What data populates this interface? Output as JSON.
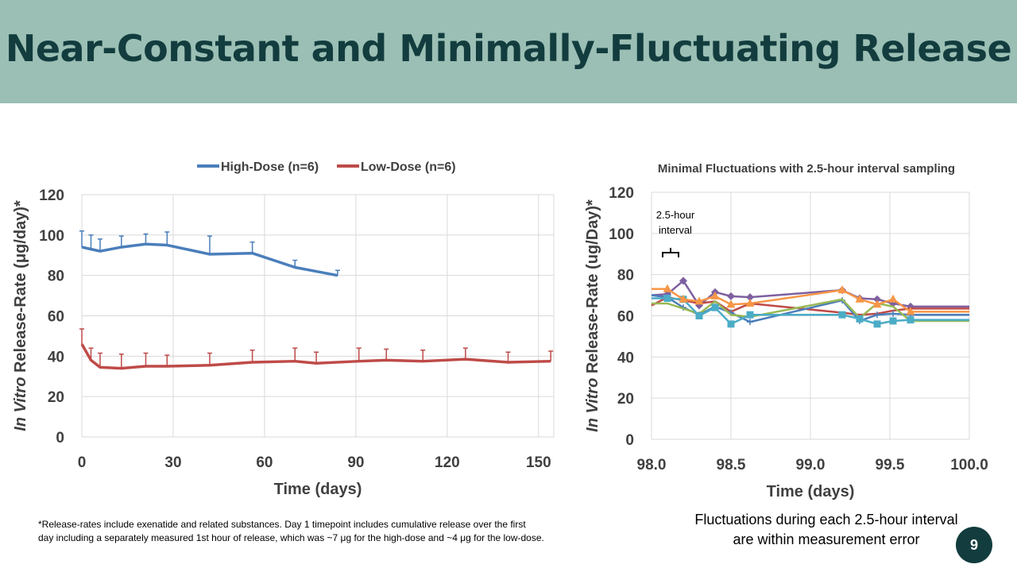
{
  "slide": {
    "title": "Near-Constant and Minimally-Fluctuating Release",
    "page_number": "9",
    "footnote_line1": "*Release-rates include exenatide and related substances.   Day 1 timepoint includes cumulative release over the first",
    "footnote_line2": "day including  a separately measured 1st hour of release, which was ~7 μg for the high-dose and ~4 μg for the low-dose.",
    "fluctuation_note_line1": "Fluctuations during each 2.5-hour interval",
    "fluctuation_note_line2": "are within measurement error",
    "colors": {
      "banner": "#9bbfb4",
      "title": "#123c3e",
      "high_dose": "#4a7ebb",
      "low_dose": "#be4b48"
    }
  },
  "chart_data": [
    {
      "type": "line",
      "title": "",
      "xlabel": "Time (days)",
      "ylabel_italic": "In Vitro",
      "ylabel_rest": " Release-Rate (μg/day)*",
      "xlim": [
        0,
        155
      ],
      "ylim": [
        0,
        120
      ],
      "xticks": [
        0,
        30,
        60,
        90,
        120,
        150
      ],
      "yticks": [
        0,
        20,
        40,
        60,
        80,
        100,
        120
      ],
      "grid": true,
      "legend_position": "top",
      "series": [
        {
          "name": "High-Dose (n=6)",
          "color": "#4a7ebb",
          "x": [
            0,
            3,
            6,
            13,
            21,
            28,
            42,
            56,
            70,
            84
          ],
          "y": [
            94,
            93,
            92,
            94,
            95.5,
            95,
            90.5,
            91,
            84,
            80
          ],
          "err": [
            8,
            7,
            6,
            5.5,
            5,
            6.5,
            9,
            5.5,
            3.5,
            2.5
          ]
        },
        {
          "name": "Low-Dose (n=6)",
          "color": "#be4b48",
          "x": [
            0,
            3,
            6,
            13,
            21,
            28,
            42,
            56,
            70,
            77,
            91,
            100,
            112,
            126,
            140,
            154
          ],
          "y": [
            46,
            38,
            34.5,
            34,
            35,
            35,
            35.5,
            37,
            37.5,
            36.5,
            37.5,
            38,
            37.5,
            38.5,
            37,
            37.5
          ],
          "err": [
            7.5,
            6,
            7,
            7,
            6.5,
            5.5,
            6,
            6,
            6.5,
            5.5,
            6.5,
            5.5,
            5.5,
            5.5,
            5,
            5
          ]
        }
      ]
    },
    {
      "type": "line",
      "title": "Minimal Fluctuations with 2.5-hour interval sampling",
      "xlabel": "Time (days)",
      "ylabel_italic": "In Vitro",
      "ylabel_rest": " Release-Rate (ug/Day)*",
      "xlim": [
        98.0,
        100.0
      ],
      "ylim": [
        0,
        120
      ],
      "xticks": [
        "98.0",
        "98.5",
        "99.0",
        "99.5",
        "100.0"
      ],
      "yticks": [
        0,
        20,
        40,
        60,
        80,
        100,
        120
      ],
      "grid": true,
      "annotation_line1": "2.5-hour",
      "annotation_line2": "interval",
      "series": [
        {
          "color": "#7e60a0",
          "marker": "diamond",
          "x": [
            98.0,
            98.1,
            98.2,
            98.3,
            98.4,
            98.5,
            98.62,
            99.2,
            99.31,
            99.42,
            99.52,
            99.63,
            100.0
          ],
          "y": [
            70,
            70.5,
            77,
            65,
            71.5,
            69.5,
            69,
            72.5,
            68.5,
            68,
            66,
            64.5,
            64.5
          ]
        },
        {
          "color": "#be4b48",
          "marker": "none",
          "x": [
            98.0,
            98.1,
            98.2,
            98.3,
            98.4,
            98.5,
            98.62,
            99.2,
            99.31,
            99.42,
            99.52,
            99.63,
            100.0
          ],
          "y": [
            65,
            69,
            67.5,
            66,
            67,
            62,
            66,
            61.5,
            60.5,
            61,
            62.5,
            63.5,
            63.5
          ]
        },
        {
          "color": "#4a7ebb",
          "marker": "plus",
          "x": [
            98.0,
            98.1,
            98.2,
            98.3,
            98.4,
            98.5,
            98.62,
            99.2,
            99.31,
            99.42,
            99.52,
            99.63,
            100.0
          ],
          "y": [
            70,
            69,
            64,
            60.5,
            64.5,
            61.5,
            57,
            67.5,
            57.5,
            60.5,
            61,
            60.5,
            60.5
          ]
        },
        {
          "color": "#98b954",
          "marker": "none",
          "x": [
            98.0,
            98.1,
            98.2,
            98.3,
            98.4,
            98.5,
            98.62,
            99.2,
            99.31,
            99.42,
            99.52,
            99.63,
            100.0
          ],
          "y": [
            66,
            66,
            63.5,
            61,
            67,
            60.5,
            59.5,
            68,
            59,
            66,
            64.5,
            57.5,
            57.5
          ]
        },
        {
          "color": "#4bacc6",
          "marker": "square",
          "x": [
            98.0,
            98.1,
            98.2,
            98.3,
            98.4,
            98.5,
            98.62,
            99.2,
            99.31,
            99.42,
            99.52,
            99.63,
            100.0
          ],
          "y": [
            68.5,
            68.5,
            68,
            60,
            64,
            56,
            60.5,
            60.5,
            58.5,
            56,
            57.5,
            58,
            58
          ]
        },
        {
          "color": "#f79646",
          "marker": "triangle",
          "x": [
            98.0,
            98.1,
            98.2,
            98.3,
            98.4,
            98.5,
            98.62,
            99.2,
            99.31,
            99.42,
            99.52,
            99.63,
            100.0
          ],
          "y": [
            73,
            73,
            68,
            67,
            69.5,
            65.5,
            66,
            72.5,
            68,
            65.5,
            68,
            62,
            62
          ]
        }
      ]
    }
  ]
}
